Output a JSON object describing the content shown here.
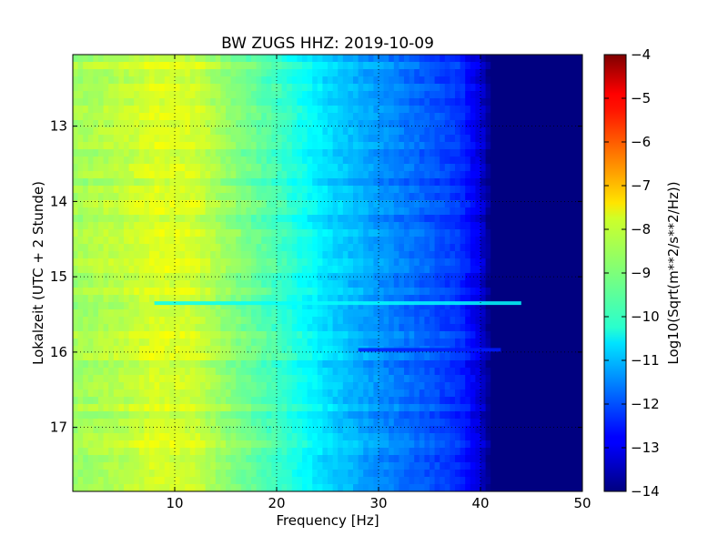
{
  "chart_data": {
    "type": "heatmap",
    "title": "BW ZUGS HHZ: 2019-10-09",
    "xlabel": "Frequency [Hz]",
    "ylabel": "Lokalzeit (UTC + 2 Stunde)",
    "xlim": [
      0,
      50
    ],
    "ylim_hours": [
      12.05,
      17.85
    ],
    "y_inverted": true,
    "x_ticks": [
      10,
      20,
      30,
      40,
      50
    ],
    "x_tick_labels": [
      "10",
      "20",
      "30",
      "40",
      "50"
    ],
    "y_ticks": [
      13,
      14,
      15,
      16,
      17
    ],
    "y_tick_labels": [
      "13",
      "14",
      "15",
      "16",
      "17"
    ],
    "grid": true,
    "colorscale": "jet",
    "colorbar": {
      "label": "Log10(Sqrt(m**2/s**2/Hz))",
      "range": [
        -14,
        -4
      ],
      "ticks": [
        -4,
        -5,
        -6,
        -7,
        -8,
        -9,
        -10,
        -11,
        -12,
        -13,
        -14
      ],
      "tick_labels": [
        "−4",
        "−5",
        "−6",
        "−7",
        "−8",
        "−9",
        "−10",
        "−11",
        "−12",
        "−13",
        "−14"
      ]
    },
    "frequency_profile": {
      "frequency_hz": [
        0,
        5,
        8,
        12,
        15,
        20,
        25,
        30,
        35,
        38,
        40,
        41,
        42,
        50
      ],
      "value": [
        -8.7,
        -8.4,
        -8.1,
        -8.2,
        -8.8,
        -9.6,
        -10.6,
        -11.3,
        -11.9,
        -12.3,
        -13.1,
        -14,
        -14,
        -14
      ]
    },
    "features": [
      {
        "time_hours": 15.35,
        "frequency_range_hz": [
          8,
          44
        ],
        "value": -10.2
      },
      {
        "time_hours": 15.97,
        "frequency_range_hz": [
          28,
          42
        ],
        "value": -12.5
      }
    ]
  }
}
